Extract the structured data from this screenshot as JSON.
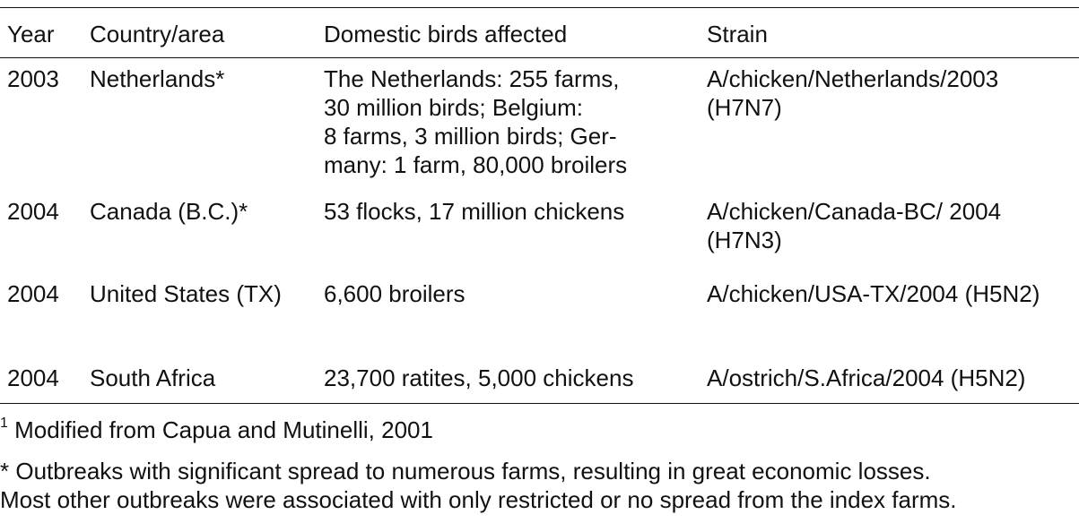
{
  "table": {
    "headers": [
      "Year",
      "Country/area",
      "Domestic birds affected",
      "Strain"
    ],
    "rows": [
      {
        "year": "2003",
        "country": "Netherlands*",
        "birds": [
          "The Netherlands: 255 farms,",
          "30 million birds; Belgium:",
          "8 farms, 3 million birds; Ger-",
          "many: 1 farm, 80,000 broilers"
        ],
        "strain": [
          "A/chicken/Netherlands/2003",
          "(H7N7)"
        ]
      },
      {
        "year": "2004",
        "country": "Canada (B.C.)*",
        "birds": [
          "53 flocks, 17 million chickens"
        ],
        "strain": [
          "A/chicken/Canada-BC/ 2004",
          "(H7N3)"
        ]
      },
      {
        "year": "2004",
        "country": "United States (TX)",
        "birds": [
          "6,600 broilers"
        ],
        "strain": [
          "A/chicken/USA-TX/2004 (H5N2)"
        ]
      },
      {
        "year": "2004",
        "country": "South Africa",
        "birds": [
          "23,700 ratites, 5,000 chickens"
        ],
        "strain": [
          "A/ostrich/S.Africa/2004 (H5N2)"
        ]
      }
    ]
  },
  "footnotes": {
    "source_marker": "1",
    "source_text": "Modified from Capua and Mutinelli, 2001",
    "asterisk_line1": "* Outbreaks with significant spread to numerous farms, resulting in great economic losses.",
    "asterisk_line2": "Most other outbreaks were associated with only restricted or no spread from the index farms."
  }
}
